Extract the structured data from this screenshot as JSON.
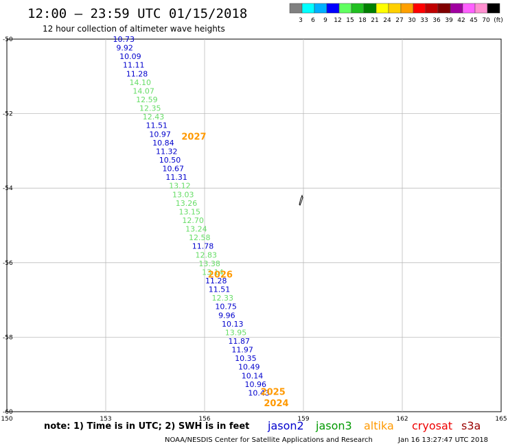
{
  "header": {
    "title": "12:00 — 23:59 UTC 01/15/2018",
    "subtitle": "12 hour collection of altimeter wave heights"
  },
  "legend": {
    "colors": [
      "#808080",
      "#00ffff",
      "#00b0ff",
      "#0000ff",
      "#60ff60",
      "#20c020",
      "#008000",
      "#ffff00",
      "#ffd000",
      "#ffa000",
      "#ff0000",
      "#c00000",
      "#800000",
      "#a000a0",
      "#ff60ff",
      "#ff90d0",
      "#000000"
    ],
    "labels": [
      "3",
      "6",
      "9",
      "12",
      "15",
      "18",
      "21",
      "24",
      "27",
      "30",
      "33",
      "36",
      "39",
      "42",
      "45",
      "70",
      "(ft)"
    ]
  },
  "footer": {
    "note": "note: 1) Time is in UTC; 2) SWH is in feet",
    "satellites": [
      {
        "name": "jason2",
        "color": "#0000cc"
      },
      {
        "name": "jason3",
        "color": "#009900"
      },
      {
        "name": "altika",
        "color": "#ff9900"
      },
      {
        "name": "cryosat",
        "color": "#ee0000"
      },
      {
        "name": "s3a",
        "color": "#990000"
      }
    ],
    "credit": "NOAA/NESDIS Center for Satellite Applications and Research",
    "timestamp": "Jan 16 13:27:47 UTC 2018"
  },
  "chart_data": {
    "type": "scatter",
    "xlim": [
      150,
      165
    ],
    "ylim": [
      -60,
      -50
    ],
    "x_ticks": [
      150,
      153,
      156,
      159,
      162,
      165
    ],
    "y_ticks": [
      -50,
      -52,
      -54,
      -56,
      -58,
      -60
    ],
    "grid": true,
    "colors": {
      "blue": "#0000cc",
      "green": "#66dd66",
      "orange": "#ff9900"
    },
    "points": [
      {
        "x": 153.22,
        "y": -50.0,
        "label": "10.73",
        "c": "blue"
      },
      {
        "x": 153.32,
        "y": -50.23,
        "label": "9.92",
        "c": "blue"
      },
      {
        "x": 153.42,
        "y": -50.46,
        "label": "10.09",
        "c": "blue"
      },
      {
        "x": 153.52,
        "y": -50.69,
        "label": "11.11",
        "c": "blue"
      },
      {
        "x": 153.62,
        "y": -50.93,
        "label": "11.28",
        "c": "blue"
      },
      {
        "x": 153.72,
        "y": -51.16,
        "label": "14.10",
        "c": "green"
      },
      {
        "x": 153.82,
        "y": -51.39,
        "label": "14.07",
        "c": "green"
      },
      {
        "x": 153.92,
        "y": -51.62,
        "label": "12.59",
        "c": "green"
      },
      {
        "x": 154.02,
        "y": -51.85,
        "label": "12.35",
        "c": "green"
      },
      {
        "x": 154.12,
        "y": -52.08,
        "label": "12.43",
        "c": "green"
      },
      {
        "x": 154.22,
        "y": -52.31,
        "label": "11.51",
        "c": "blue"
      },
      {
        "x": 154.32,
        "y": -52.55,
        "label": "10.97",
        "c": "blue"
      },
      {
        "x": 154.42,
        "y": -52.78,
        "label": "10.84",
        "c": "blue"
      },
      {
        "x": 154.52,
        "y": -53.01,
        "label": "11.32",
        "c": "blue"
      },
      {
        "x": 154.62,
        "y": -53.24,
        "label": "10.50",
        "c": "blue"
      },
      {
        "x": 154.72,
        "y": -53.47,
        "label": "10.67",
        "c": "blue"
      },
      {
        "x": 154.82,
        "y": -53.7,
        "label": "11.31",
        "c": "blue"
      },
      {
        "x": 154.92,
        "y": -53.93,
        "label": "13.12",
        "c": "green"
      },
      {
        "x": 155.02,
        "y": -54.17,
        "label": "13.03",
        "c": "green"
      },
      {
        "x": 155.12,
        "y": -54.4,
        "label": "13.26",
        "c": "green"
      },
      {
        "x": 155.22,
        "y": -54.63,
        "label": "13.15",
        "c": "green"
      },
      {
        "x": 155.32,
        "y": -54.86,
        "label": "12.70",
        "c": "green"
      },
      {
        "x": 155.42,
        "y": -55.09,
        "label": "13.24",
        "c": "green"
      },
      {
        "x": 155.52,
        "y": -55.32,
        "label": "12.58",
        "c": "green"
      },
      {
        "x": 155.62,
        "y": -55.55,
        "label": "11.78",
        "c": "blue"
      },
      {
        "x": 155.72,
        "y": -55.79,
        "label": "12.83",
        "c": "green"
      },
      {
        "x": 155.82,
        "y": -56.02,
        "label": "13.38",
        "c": "green"
      },
      {
        "x": 155.92,
        "y": -56.25,
        "label": "13.14",
        "c": "green"
      },
      {
        "x": 156.02,
        "y": -56.48,
        "label": "11.28",
        "c": "blue"
      },
      {
        "x": 156.12,
        "y": -56.71,
        "label": "11.51",
        "c": "blue"
      },
      {
        "x": 156.22,
        "y": -56.94,
        "label": "12.33",
        "c": "green"
      },
      {
        "x": 156.32,
        "y": -57.17,
        "label": "10.75",
        "c": "blue"
      },
      {
        "x": 156.42,
        "y": -57.41,
        "label": "9.96",
        "c": "blue"
      },
      {
        "x": 156.52,
        "y": -57.64,
        "label": "10.13",
        "c": "blue"
      },
      {
        "x": 156.62,
        "y": -57.87,
        "label": "13.95",
        "c": "green"
      },
      {
        "x": 156.72,
        "y": -58.1,
        "label": "11.87",
        "c": "blue"
      },
      {
        "x": 156.82,
        "y": -58.33,
        "label": "11.97",
        "c": "blue"
      },
      {
        "x": 156.92,
        "y": -58.56,
        "label": "10.35",
        "c": "blue"
      },
      {
        "x": 157.02,
        "y": -58.79,
        "label": "10.49",
        "c": "blue"
      },
      {
        "x": 157.12,
        "y": -59.03,
        "label": "10.14",
        "c": "blue"
      },
      {
        "x": 157.22,
        "y": -59.26,
        "label": "10.96",
        "c": "blue"
      },
      {
        "x": 157.32,
        "y": -59.49,
        "label": "10.43",
        "c": "blue"
      }
    ],
    "annotations": [
      {
        "text": "2027",
        "color": "#ff9900",
        "x": 155.3,
        "y": -52.7
      },
      {
        "text": "2026",
        "color": "#ff9900",
        "x": 156.1,
        "y": -56.4
      },
      {
        "text": "2025",
        "color": "#ff9900",
        "x": 157.7,
        "y": -59.55
      },
      {
        "text": "2024",
        "color": "#ff9900",
        "x": 157.8,
        "y": -59.85
      }
    ]
  }
}
